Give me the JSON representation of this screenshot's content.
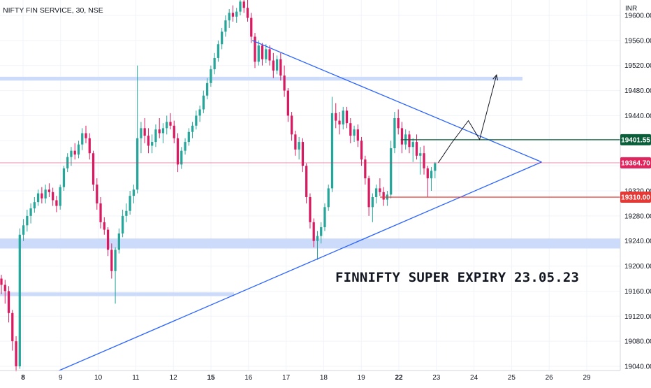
{
  "chart_data": {
    "type": "candlestick",
    "title": "NIFTY FIN SERVICE, 30, NSE",
    "currency": "INR",
    "annotation": "FINNIFTY SUPER EXPIRY 23.05.23",
    "ylim": [
      19030,
      19650
    ],
    "y_ticks": [
      "19600.00",
      "19560.00",
      "19520.00",
      "19480.00",
      "19440.00",
      "19400.00",
      "19360.00",
      "19320.00",
      "19280.00",
      "19240.00",
      "19200.00",
      "19160.00",
      "19120.00",
      "19080.00",
      "19040.00"
    ],
    "x_ticks": [
      "8",
      "9",
      "10",
      "11",
      "12",
      "15",
      "16",
      "17",
      "18",
      "19",
      "22",
      "23",
      "24",
      "25",
      "26",
      "29"
    ],
    "bold_x_ticks": [
      "8",
      "15",
      "22"
    ],
    "price_labels": [
      {
        "value": 19401.55,
        "text": "19401.55",
        "color": "#0b5e3a"
      },
      {
        "value": 19364.7,
        "text": "19364.70",
        "color": "#e0245e"
      },
      {
        "value": 19310.0,
        "text": "19310.00",
        "color": "#e53935"
      }
    ],
    "zones": [
      {
        "from": 19496,
        "to": 19502,
        "label": "resistance-zone"
      },
      {
        "from": 19228,
        "to": 19244,
        "label": "support-zone-upper"
      },
      {
        "from": 19152,
        "to": 19158,
        "label": "support-zone-lower"
      }
    ],
    "trendlines": [
      {
        "name": "upper-trendline",
        "from": {
          "day_index": 6.1,
          "price": 19560
        },
        "to": {
          "day_index": 13.8,
          "price": 19366
        }
      },
      {
        "name": "lower-trendline",
        "from": {
          "day_index": 0.95,
          "price": 19033
        },
        "to": {
          "day_index": 13.8,
          "price": 19366
        }
      }
    ],
    "colors": {
      "up": "#26a69a",
      "down": "#d81b60",
      "zone": "#c8d7fb",
      "trendline": "#2962ff",
      "grid": "#f0f3fa",
      "axis_border": "#d1d4dc"
    },
    "candles_ohlc": [
      [
        19180,
        19186,
        19155,
        19170
      ],
      [
        19170,
        19178,
        19140,
        19160
      ],
      [
        19160,
        19168,
        19110,
        19125
      ],
      [
        19125,
        19130,
        19065,
        19080
      ],
      [
        19080,
        19088,
        19032,
        19040
      ],
      [
        19040,
        19260,
        19036,
        19250
      ],
      [
        19250,
        19275,
        19240,
        19265
      ],
      [
        19265,
        19290,
        19255,
        19280
      ],
      [
        19280,
        19300,
        19268,
        19292
      ],
      [
        19292,
        19310,
        19285,
        19302
      ],
      [
        19302,
        19322,
        19296,
        19316
      ],
      [
        19316,
        19326,
        19300,
        19308
      ],
      [
        19308,
        19330,
        19300,
        19322
      ],
      [
        19322,
        19332,
        19310,
        19318
      ],
      [
        19318,
        19325,
        19296,
        19305
      ],
      [
        19305,
        19312,
        19286,
        19296
      ],
      [
        19296,
        19330,
        19290,
        19326
      ],
      [
        19326,
        19360,
        19320,
        19356
      ],
      [
        19356,
        19380,
        19350,
        19374
      ],
      [
        19374,
        19390,
        19360,
        19384
      ],
      [
        19384,
        19396,
        19370,
        19378
      ],
      [
        19378,
        19400,
        19372,
        19394
      ],
      [
        19394,
        19420,
        19385,
        19412
      ],
      [
        19412,
        19424,
        19396,
        19404
      ],
      [
        19404,
        19412,
        19370,
        19380
      ],
      [
        19380,
        19384,
        19320,
        19330
      ],
      [
        19330,
        19340,
        19290,
        19300
      ],
      [
        19300,
        19310,
        19260,
        19270
      ],
      [
        19270,
        19278,
        19250,
        19258
      ],
      [
        19258,
        19262,
        19216,
        19226
      ],
      [
        19226,
        19236,
        19180,
        19192
      ],
      [
        19192,
        19230,
        19140,
        19226
      ],
      [
        19226,
        19260,
        19220,
        19252
      ],
      [
        19252,
        19290,
        19246,
        19280
      ],
      [
        19280,
        19300,
        19270,
        19288
      ],
      [
        19288,
        19320,
        19282,
        19312
      ],
      [
        19312,
        19330,
        19300,
        19322
      ],
      [
        19322,
        19520,
        19316,
        19404
      ],
      [
        19404,
        19430,
        19380,
        19420
      ],
      [
        19420,
        19436,
        19396,
        19408
      ],
      [
        19408,
        19420,
        19380,
        19392
      ],
      [
        19392,
        19410,
        19380,
        19398
      ],
      [
        19398,
        19426,
        19390,
        19418
      ],
      [
        19418,
        19436,
        19404,
        19412
      ],
      [
        19412,
        19428,
        19396,
        19420
      ],
      [
        19420,
        19440,
        19410,
        19430
      ],
      [
        19430,
        19444,
        19418,
        19424
      ],
      [
        19424,
        19432,
        19396,
        19404
      ],
      [
        19404,
        19412,
        19350,
        19362
      ],
      [
        19362,
        19390,
        19355,
        19384
      ],
      [
        19384,
        19404,
        19378,
        19398
      ],
      [
        19398,
        19420,
        19392,
        19414
      ],
      [
        19414,
        19430,
        19404,
        19424
      ],
      [
        19424,
        19448,
        19418,
        19440
      ],
      [
        19440,
        19456,
        19430,
        19450
      ],
      [
        19450,
        19480,
        19444,
        19472
      ],
      [
        19472,
        19500,
        19466,
        19492
      ],
      [
        19492,
        19520,
        19486,
        19514
      ],
      [
        19514,
        19540,
        19506,
        19532
      ],
      [
        19532,
        19560,
        19526,
        19554
      ],
      [
        19554,
        19580,
        19546,
        19574
      ],
      [
        19574,
        19600,
        19566,
        19592
      ],
      [
        19592,
        19610,
        19580,
        19604
      ],
      [
        19604,
        19616,
        19590,
        19598
      ],
      [
        19598,
        19612,
        19588,
        19606
      ],
      [
        19606,
        19628,
        19600,
        19622
      ],
      [
        19622,
        19636,
        19604,
        19612
      ],
      [
        19612,
        19626,
        19590,
        19596
      ],
      [
        19596,
        19604,
        19556,
        19566
      ],
      [
        19566,
        19572,
        19516,
        19526
      ],
      [
        19526,
        19560,
        19520,
        19552
      ],
      [
        19552,
        19556,
        19520,
        19530
      ],
      [
        19530,
        19554,
        19524,
        19546
      ],
      [
        19546,
        19552,
        19520,
        19528
      ],
      [
        19528,
        19540,
        19500,
        19512
      ],
      [
        19512,
        19536,
        19506,
        19530
      ],
      [
        19530,
        19540,
        19496,
        19504
      ],
      [
        19504,
        19520,
        19470,
        19480
      ],
      [
        19480,
        19484,
        19430,
        19440
      ],
      [
        19440,
        19446,
        19400,
        19410
      ],
      [
        19410,
        19416,
        19376,
        19386
      ],
      [
        19386,
        19406,
        19370,
        19398
      ],
      [
        19398,
        19404,
        19350,
        19360
      ],
      [
        19360,
        19364,
        19300,
        19310
      ],
      [
        19310,
        19316,
        19260,
        19270
      ],
      [
        19270,
        19276,
        19230,
        19240
      ],
      [
        19240,
        19256,
        19210,
        19248
      ],
      [
        19248,
        19270,
        19236,
        19262
      ],
      [
        19262,
        19300,
        19256,
        19294
      ],
      [
        19294,
        19330,
        19288,
        19324
      ],
      [
        19324,
        19470,
        19318,
        19444
      ],
      [
        19444,
        19460,
        19420,
        19432
      ],
      [
        19432,
        19446,
        19410,
        19426
      ],
      [
        19426,
        19454,
        19418,
        19448
      ],
      [
        19448,
        19454,
        19420,
        19428
      ],
      [
        19428,
        19436,
        19396,
        19408
      ],
      [
        19408,
        19424,
        19398,
        19418
      ],
      [
        19418,
        19426,
        19390,
        19400
      ],
      [
        19400,
        19406,
        19360,
        19370
      ],
      [
        19370,
        19376,
        19330,
        19340
      ],
      [
        19340,
        19344,
        19280,
        19294
      ],
      [
        19294,
        19316,
        19270,
        19310
      ],
      [
        19310,
        19330,
        19300,
        19324
      ],
      [
        19324,
        19340,
        19312,
        19318
      ],
      [
        19318,
        19326,
        19296,
        19306
      ],
      [
        19306,
        19320,
        19296,
        19314
      ],
      [
        19314,
        19400,
        19308,
        19388
      ],
      [
        19388,
        19446,
        19380,
        19436
      ],
      [
        19436,
        19450,
        19410,
        19420
      ],
      [
        19420,
        19430,
        19380,
        19394
      ],
      [
        19394,
        19418,
        19386,
        19410
      ],
      [
        19410,
        19416,
        19380,
        19390
      ],
      [
        19390,
        19404,
        19366,
        19398
      ],
      [
        19398,
        19410,
        19370,
        19376
      ],
      [
        19376,
        19390,
        19346,
        19380
      ],
      [
        19380,
        19392,
        19346,
        19356
      ],
      [
        19356,
        19360,
        19310,
        19340
      ],
      [
        19340,
        19358,
        19320,
        19352
      ],
      [
        19352,
        19366,
        19340,
        19364
      ]
    ],
    "projection": [
      {
        "day_index": 11.05,
        "price": 19365
      },
      {
        "day_index": 11.4,
        "price": 19396
      },
      {
        "day_index": 11.85,
        "price": 19432
      },
      {
        "day_index": 12.15,
        "price": 19402
      },
      {
        "day_index": 12.6,
        "price": 19505
      }
    ]
  }
}
